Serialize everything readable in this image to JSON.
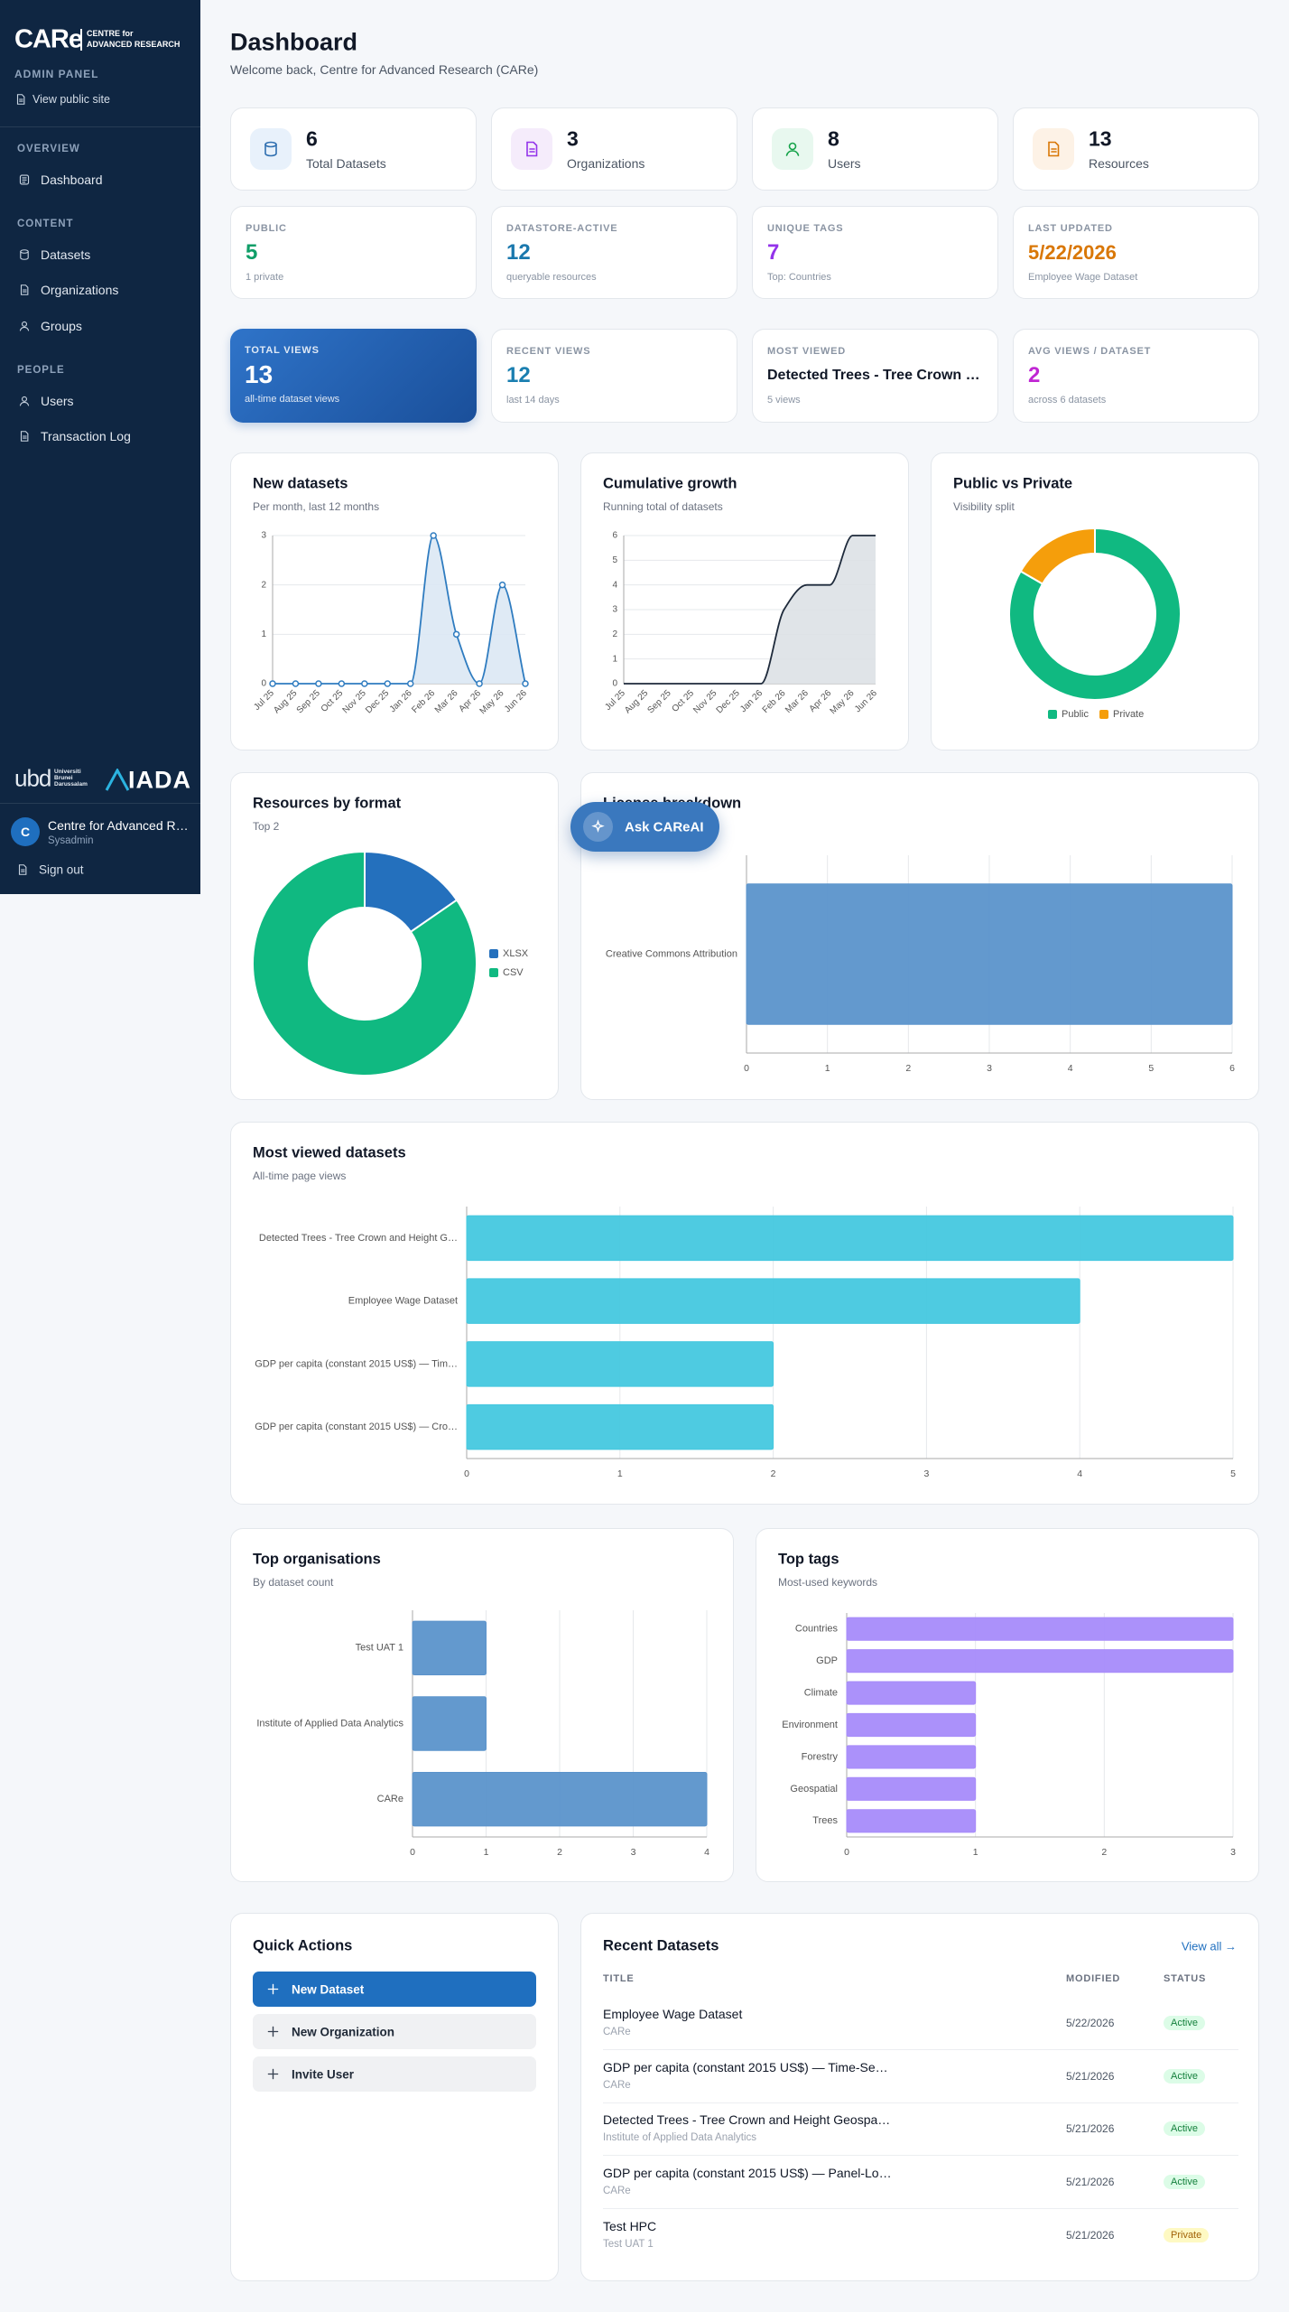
{
  "sidebar": {
    "brand": "CARe",
    "brand_tag_1": "CENTRE for",
    "brand_tag_2": "ADVANCED RESEARCH",
    "panel_label": "ADMIN PANEL",
    "public_link": "View public site",
    "sections": [
      {
        "title": "OVERVIEW",
        "items": [
          "Dashboard"
        ]
      },
      {
        "title": "CONTENT",
        "items": [
          "Datasets",
          "Organizations",
          "Groups"
        ]
      },
      {
        "title": "PEOPLE",
        "items": [
          "Users",
          "Transaction Log"
        ]
      }
    ],
    "partners": [
      "ubd",
      "Universiti Brunei Darussalam",
      "IADA"
    ],
    "user": {
      "initial": "C",
      "name": "Centre for Advanced R…",
      "role": "Sysadmin"
    },
    "sign_out": "Sign out"
  },
  "header": {
    "title": "Dashboard",
    "subtitle": "Welcome back, Centre for Advanced Research (CARe)"
  },
  "stats": [
    {
      "value": 6,
      "label": "Total Datasets"
    },
    {
      "value": 3,
      "label": "Organizations"
    },
    {
      "value": 8,
      "label": "Users"
    },
    {
      "value": 13,
      "label": "Resources"
    }
  ],
  "metrics": [
    {
      "label": "PUBLIC",
      "value": 5,
      "note": "1 private"
    },
    {
      "label": "DATASTORE-ACTIVE",
      "value": 12,
      "note": "queryable resources"
    },
    {
      "label": "UNIQUE TAGS",
      "value": 7,
      "note": "Top: Countries"
    },
    {
      "label": "LAST UPDATED",
      "value": "5/22/2026",
      "note": "Employee Wage Dataset"
    },
    {
      "label": "TOTAL VIEWS",
      "value": 13,
      "note": "all-time dataset views"
    },
    {
      "label": "RECENT VIEWS",
      "value": 12,
      "note": "last 14 days"
    },
    {
      "label": "MOST VIEWED",
      "value": "Detected Trees - Tree Crown …",
      "note": "5 views"
    },
    {
      "label": "AVG VIEWS / DATASET",
      "value": 2,
      "note": "across 6 datasets"
    }
  ],
  "assistant_button": "Ask CAReAI",
  "chart_data": [
    {
      "type": "line",
      "title": "New datasets",
      "subtitle": "Per month, last 12 months",
      "categories": [
        "Jul 25",
        "Aug 25",
        "Sep 25",
        "Oct 25",
        "Nov 25",
        "Dec 25",
        "Jan 26",
        "Feb 26",
        "Mar 26",
        "Apr 26",
        "May 26",
        "Jun 26"
      ],
      "values": [
        0,
        0,
        0,
        0,
        0,
        0,
        0,
        3,
        1,
        0,
        2,
        0
      ],
      "color": "#2f7cc0",
      "area_color": "#dbe8f4",
      "markers": true,
      "ylim": [
        0,
        3
      ],
      "yticks": [
        0,
        1,
        2,
        3
      ],
      "grid": true
    },
    {
      "type": "line",
      "title": "Cumulative growth",
      "subtitle": "Running total of datasets",
      "categories": [
        "Jul 25",
        "Aug 25",
        "Sep 25",
        "Oct 25",
        "Nov 25",
        "Dec 25",
        "Jan 26",
        "Feb 26",
        "Mar 26",
        "Apr 26",
        "May 26",
        "Jun 26"
      ],
      "values": [
        0,
        0,
        0,
        0,
        0,
        0,
        0,
        3,
        4,
        4,
        6,
        6
      ],
      "color": "#1e2a3b",
      "area_color": "#dde1e6",
      "markers": false,
      "ylim": [
        0,
        6
      ],
      "yticks": [
        0,
        1,
        2,
        3,
        4,
        5,
        6
      ],
      "grid": true
    },
    {
      "type": "donut",
      "title": "Public vs Private",
      "subtitle": "Visibility split",
      "categories": [
        "Public",
        "Private"
      ],
      "values": [
        5,
        1
      ],
      "colors": [
        "#10b981",
        "#f59e0b"
      ]
    },
    {
      "type": "donut",
      "title": "Resources by format",
      "subtitle": "Top 2",
      "categories": [
        "XLSX",
        "CSV"
      ],
      "values": [
        2,
        11
      ],
      "colors": [
        "#2470bd",
        "#10b981"
      ]
    },
    {
      "type": "hbar",
      "title": "License breakdown",
      "categories": [
        "Creative Commons Attribution"
      ],
      "values": [
        6
      ],
      "color": "#5b93cb",
      "xlim": [
        0,
        6
      ],
      "xticks": [
        0,
        1,
        2,
        3,
        4,
        5,
        6
      ],
      "grid": true
    },
    {
      "type": "hbar",
      "title": "Most viewed datasets",
      "subtitle": "All-time page views",
      "categories": [
        "Detected Trees - Tree Crown and Height G…",
        "Employee Wage Dataset",
        "GDP per capita (constant 2015 US$) — Tim…",
        "GDP per capita (constant 2015 US$) — Cro…"
      ],
      "values": [
        5,
        4,
        2,
        2
      ],
      "color": "#45c8df",
      "xlim": [
        0,
        5
      ],
      "xticks": [
        0,
        1,
        2,
        3,
        4,
        5
      ],
      "grid": true
    },
    {
      "type": "hbar",
      "title": "Top organisations",
      "subtitle": "By dataset count",
      "categories": [
        "Test UAT 1",
        "Institute of Applied Data Analytics",
        "CARe"
      ],
      "values": [
        1,
        1,
        4
      ],
      "color": "#5b93cb",
      "xlim": [
        0,
        4
      ],
      "xticks": [
        0,
        1,
        2,
        3,
        4
      ],
      "grid": true
    },
    {
      "type": "hbar",
      "title": "Top tags",
      "subtitle": "Most-used keywords",
      "categories": [
        "Countries",
        "GDP",
        "Climate",
        "Environment",
        "Forestry",
        "Geospatial",
        "Trees"
      ],
      "values": [
        3,
        3,
        1,
        1,
        1,
        1,
        1
      ],
      "color": "#a78bfa",
      "xlim": [
        0,
        3
      ],
      "xticks": [
        0,
        1,
        2,
        3
      ],
      "grid": true
    }
  ],
  "quick_actions": {
    "title": "Quick Actions",
    "items": [
      "New Dataset",
      "New Organization",
      "Invite User"
    ]
  },
  "recent_datasets": {
    "title": "Recent Datasets",
    "view_all": "View all →",
    "columns": [
      "TITLE",
      "MODIFIED",
      "STATUS"
    ],
    "rows": [
      {
        "title": "Employee Wage Dataset",
        "org": "CARe",
        "modified": "5/22/2026",
        "status": "Active"
      },
      {
        "title": "GDP per capita (constant 2015 US$) — Time-Se…",
        "org": "CARe",
        "modified": "5/21/2026",
        "status": "Active"
      },
      {
        "title": "Detected Trees - Tree Crown and Height Geospa…",
        "org": "Institute of Applied Data Analytics",
        "modified": "5/21/2026",
        "status": "Active"
      },
      {
        "title": "GDP per capita (constant 2015 US$) — Panel-Lo…",
        "org": "CARe",
        "modified": "5/21/2026",
        "status": "Active"
      },
      {
        "title": "Test HPC",
        "org": "Test UAT 1",
        "modified": "5/21/2026",
        "status": "Private"
      }
    ]
  }
}
